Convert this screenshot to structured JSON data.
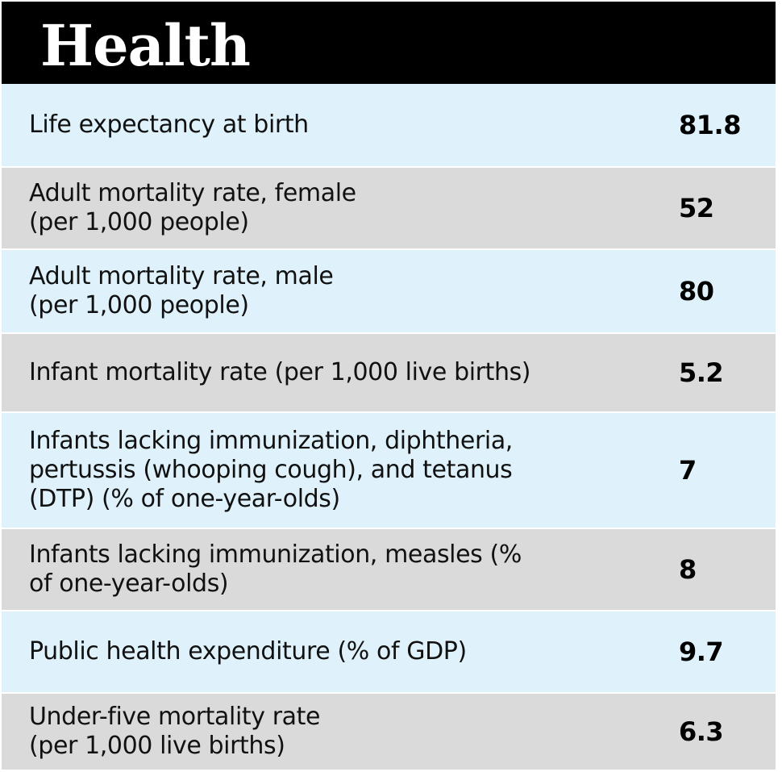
{
  "header": {
    "title": "Health"
  },
  "colors": {
    "header_bg": "#000000",
    "row_light": "#dff2fb",
    "row_dark": "#dadada"
  },
  "rows": [
    {
      "label": "Life expectancy at birth",
      "value": "81.8"
    },
    {
      "label": "Adult mortality rate, female\n(per 1,000 people)",
      "value": "52"
    },
    {
      "label": "Adult mortality rate, male\n(per 1,000 people)",
      "value": "80"
    },
    {
      "label": "Infant mortality rate (per 1,000 live births)",
      "value": "5.2"
    },
    {
      "label": "Infants lacking immunization, diphtheria,\npertussis (whooping cough), and tetanus\n(DTP) (% of one-year-olds)",
      "value": "7"
    },
    {
      "label": "Infants lacking immunization, measles (%\nof one-year-olds)",
      "value": "8"
    },
    {
      "label": "Public health expenditure (% of GDP)",
      "value": "9.7"
    },
    {
      "label": "Under-five mortality rate\n(per 1,000 live births)",
      "value": "6.3"
    }
  ]
}
